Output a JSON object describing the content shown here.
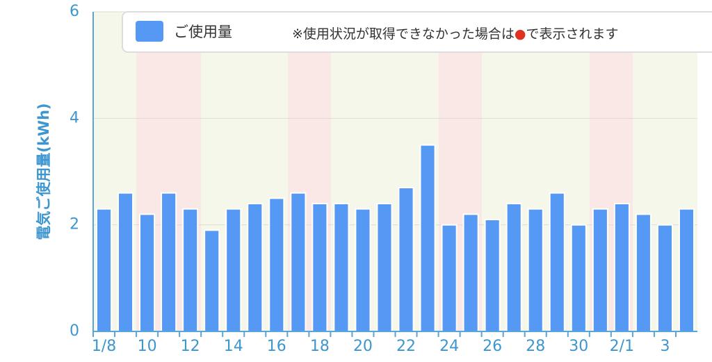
{
  "chart_data": {
    "type": "bar",
    "y_label": "電気ご使用量(kWh)",
    "categories": [
      "1/8",
      null,
      "10",
      null,
      "12",
      null,
      "14",
      null,
      "16",
      null,
      "18",
      null,
      "20",
      null,
      "22",
      null,
      "24",
      null,
      "26",
      null,
      "28",
      null,
      "30",
      null,
      "2/1",
      null,
      "3",
      null
    ],
    "series": [
      {
        "name": "ご使用量",
        "color": "#5599f5",
        "values": [
          2.3,
          2.6,
          2.2,
          2.6,
          2.3,
          1.9,
          2.3,
          2.4,
          2.5,
          2.6,
          2.4,
          2.4,
          2.3,
          2.4,
          2.7,
          3.5,
          2.0,
          2.2,
          2.1,
          2.4,
          2.3,
          2.6,
          2.0,
          2.3,
          2.4,
          2.2,
          2.0,
          2.3
        ]
      }
    ],
    "note": [
      "※使用状況が取得できなかった場合は",
      "●",
      "で表示されます"
    ],
    "ylim": [
      0,
      6
    ],
    "yticks": [
      0,
      2,
      4,
      6
    ],
    "grid": true
  }
}
